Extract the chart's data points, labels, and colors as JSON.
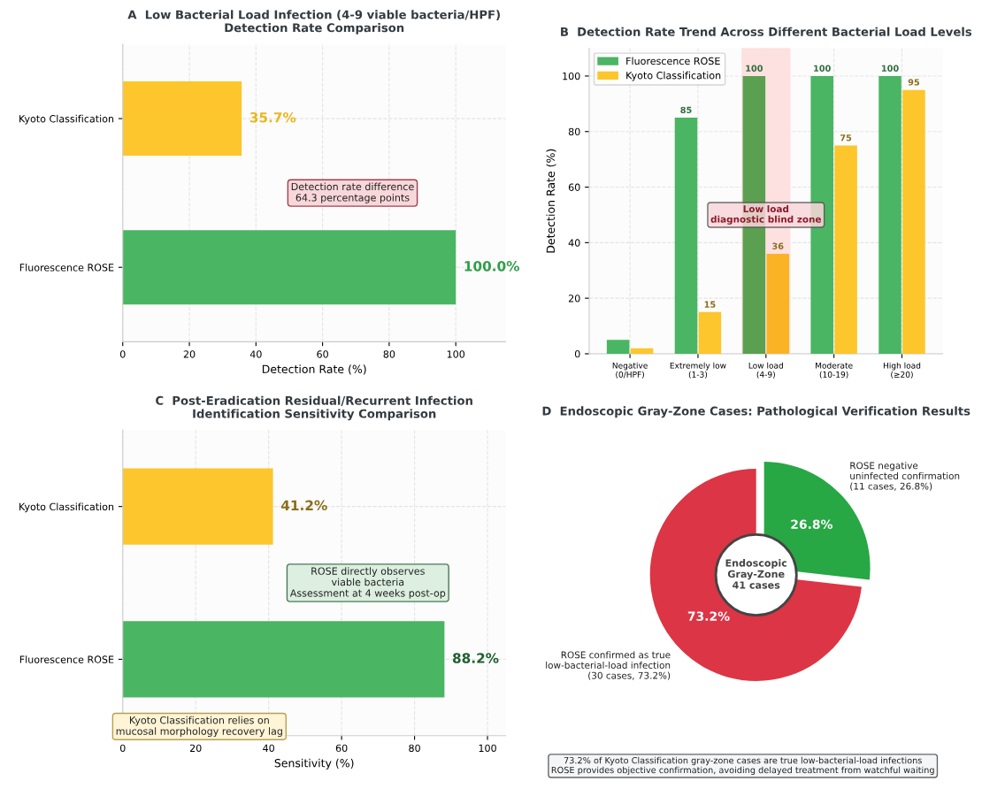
{
  "chart_data": [
    {
      "type": "bar",
      "orientation": "horizontal",
      "title": "A  Low Bacterial Load Infection (4-9 viable bacteria/HPF)\nDetection Rate Comparison",
      "xlabel": "Detection Rate (%)",
      "categories": [
        "Kyoto Classification",
        "Fluorescence ROSE"
      ],
      "values": [
        35.7,
        100
      ],
      "colors": [
        "#fcc62c",
        "#4ab563"
      ],
      "value_labels": [
        "35.7%",
        "100.0%"
      ],
      "xlim": [
        0,
        115
      ],
      "xticks": [
        0,
        20,
        40,
        60,
        80,
        100
      ],
      "grid": true,
      "annotations": [
        "Detection rate difference\n64.3 percentage points"
      ]
    },
    {
      "type": "bar",
      "title": "B  Detection Rate Trend Across Different Bacterial Load Levels",
      "ylabel": "Detection Rate (%)",
      "categories": [
        "Negative\n(0/HPF)",
        "Extremely low\n(1-3)",
        "Low load\n(4-9)",
        "Moderate\n(10-19)",
        "High load\n(≥20)"
      ],
      "series": [
        {
          "name": "Fluorescence ROSE",
          "color": "#4ab563",
          "colors": [
            "#4ab563",
            "#4ab563",
            "#5aa050",
            "#4ab563",
            "#4ab563"
          ],
          "values": [
            5,
            85,
            100,
            100,
            100
          ],
          "value_labels": [
            null,
            "85",
            "100",
            "100",
            "100"
          ]
        },
        {
          "name": "Kyoto Classification",
          "color": "#fcc62c",
          "colors": [
            "#fcc62c",
            "#fcc62c",
            "#fbb326",
            "#fcc62c",
            "#fcc62c"
          ],
          "values": [
            2,
            15,
            36,
            75,
            95
          ],
          "value_labels": [
            null,
            "15",
            "36",
            "75",
            "95"
          ]
        }
      ],
      "ylim": [
        0,
        110
      ],
      "yticks": [
        0,
        20,
        40,
        60,
        80,
        100
      ],
      "grid": true,
      "legend": "top left",
      "bands": [
        {
          "axis": "x",
          "from": "Low load\n(4-9)",
          "to": "Low load\n(4-9)",
          "label": "Low load\ndiagnostic blind zone",
          "color": "#fde0e0"
        }
      ]
    },
    {
      "type": "bar",
      "orientation": "horizontal",
      "title": "C  Post-Eradication Residual/Recurrent Infection\nIdentification Sensitivity Comparison",
      "xlabel": "Sensitivity (%)",
      "categories": [
        "Kyoto Classification",
        "Fluorescence ROSE"
      ],
      "values": [
        41.2,
        88.2
      ],
      "colors": [
        "#fcc62c",
        "#4ab563"
      ],
      "value_labels": [
        "41.2%",
        "88.2%"
      ],
      "xlim": [
        0,
        105
      ],
      "xticks": [
        0,
        20,
        40,
        60,
        80,
        100
      ],
      "grid": true,
      "annotations": [
        "ROSE directly observes\nviable bacteria\nAssessment at 4 weeks post-op",
        "Kyoto Classification relies on\nmucosal morphology recovery lag"
      ]
    },
    {
      "type": "donut",
      "title": "D  Endoscopic Gray-Zone Cases: Pathological Verification Results",
      "categories": [
        "ROSE negative\nuninfected confirmation\n(11 cases, 26.8%)",
        "ROSE confirmed as true\nlow-bacterial-load infection\n(30 cases, 73.2%)"
      ],
      "values": [
        26.8,
        73.2
      ],
      "colors": [
        "#28a745",
        "#dc3545"
      ],
      "value_labels": [
        "26.8%",
        "73.2%"
      ],
      "annotations": [
        "Endoscopic\nGray-Zone\n41 cases",
        "73.2% of Kyoto Classification gray-zone cases are true low-bacterial-load infections\nROSE provides objective confirmation, avoiding delayed treatment from watchful waiting"
      ]
    }
  ]
}
